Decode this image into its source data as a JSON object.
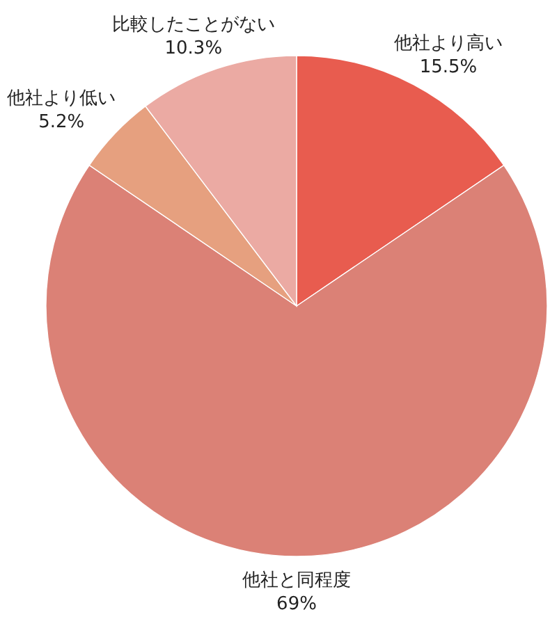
{
  "chart_data": {
    "type": "pie",
    "categories": [
      "他社より高い",
      "他社と同程度",
      "他社より低い",
      "比較したことがない"
    ],
    "values": [
      15.5,
      69,
      5.2,
      10.3
    ],
    "value_labels": [
      "15.5%",
      "69%",
      "5.2%",
      "10.3%"
    ],
    "colors": [
      "#e85c4f",
      "#db8176",
      "#e6a07f",
      "#ebaaa3"
    ]
  }
}
